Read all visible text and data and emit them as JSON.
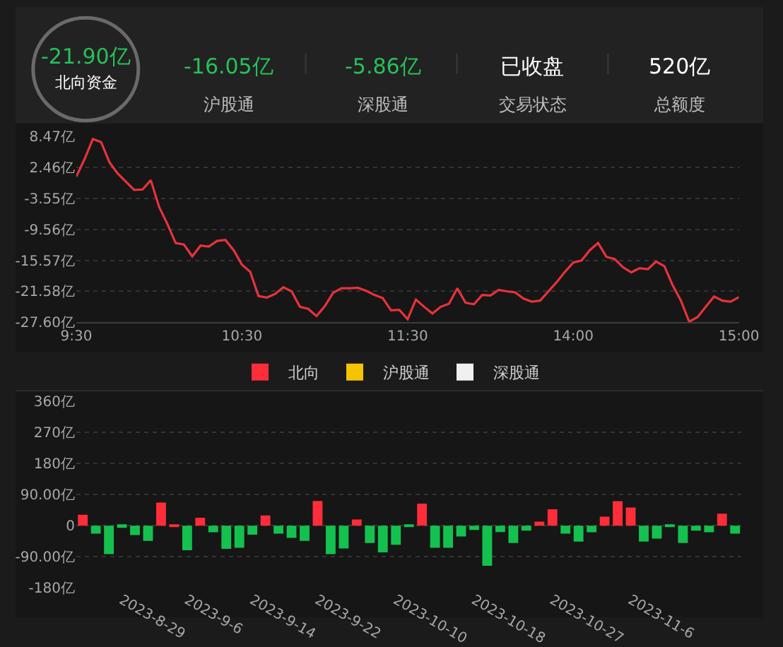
{
  "chart_data": [
    {
      "type": "other",
      "annotations": [
        "-21.90亿",
        "北向资金",
        "-16.05亿",
        "沪股通",
        "-5.86亿",
        "深股通",
        "已收盘",
        "交易状态",
        "520亿",
        "总额度"
      ]
    },
    {
      "type": "line",
      "categories": [
        "9:30",
        null,
        null,
        null,
        null,
        null,
        null,
        null,
        null,
        null,
        null,
        null,
        null,
        null,
        null,
        null,
        null,
        null,
        null,
        null,
        "10:30",
        null,
        null,
        null,
        null,
        null,
        null,
        null,
        null,
        null,
        null,
        null,
        null,
        null,
        null,
        null,
        null,
        null,
        null,
        null,
        "11:30",
        null,
        null,
        null,
        null,
        null,
        null,
        null,
        null,
        null,
        null,
        null,
        null,
        null,
        null,
        null,
        null,
        null,
        null,
        null,
        "14:00",
        null,
        null,
        null,
        null,
        null,
        null,
        null,
        null,
        null,
        null,
        null,
        null,
        null,
        null,
        null,
        null,
        null,
        null,
        null,
        "15:00"
      ],
      "ylim": [
        -27.6,
        8.47
      ],
      "yticks": [
        {
          "value": 8.47,
          "label": "8.47亿"
        },
        {
          "value": 2.46,
          "label": "2.46亿"
        },
        {
          "value": -3.55,
          "label": "-3.55亿"
        },
        {
          "value": -9.56,
          "label": "-9.56亿"
        },
        {
          "value": -15.57,
          "label": "-15.57亿"
        },
        {
          "value": -21.58,
          "label": "-21.58亿"
        },
        {
          "value": -27.6,
          "label": "-27.60亿"
        }
      ],
      "grid": "y",
      "series": [
        {
          "color": "#e8323c",
          "values": [
            0.7,
            4.1,
            8.0,
            7.4,
            3.5,
            1.3,
            -0.3,
            -1.9,
            -1.8,
            0.0,
            -5.2,
            -8.5,
            -12.2,
            -12.5,
            -14.8,
            -12.7,
            -12.9,
            -11.8,
            -11.6,
            -13.6,
            -16.4,
            -17.8,
            -22.5,
            -22.8,
            -22.1,
            -20.8,
            -21.6,
            -24.6,
            -25.0,
            -26.4,
            -24.5,
            -21.9,
            -21.0,
            -21.0,
            -20.9,
            -21.5,
            -22.3,
            -22.9,
            -25.3,
            -25.2,
            -27.0,
            -23.2,
            -24.6,
            -25.9,
            -24.6,
            -24.0,
            -21.0,
            -23.8,
            -24.1,
            -22.3,
            -22.4,
            -21.3,
            -21.6,
            -21.8,
            -23.0,
            -23.6,
            -23.4,
            -21.6,
            -19.8,
            -17.8,
            -16.0,
            -15.6,
            -13.6,
            -12.2,
            -14.9,
            -15.3,
            -16.9,
            -17.9,
            -17.1,
            -17.3,
            -15.8,
            -16.7,
            -20.4,
            -23.4,
            -27.5,
            -26.6,
            -24.6,
            -22.6,
            -23.4,
            -23.6,
            -22.7
          ]
        }
      ]
    },
    {
      "type": "bar",
      "legend": "top",
      "grid": "y",
      "ylim": [
        -180,
        360
      ],
      "yticks": [
        {
          "value": 360,
          "label": "360亿"
        },
        {
          "value": 270,
          "label": "270亿"
        },
        {
          "value": 180,
          "label": "180亿"
        },
        {
          "value": 90,
          "label": "90.00亿"
        },
        0,
        {
          "value": -90,
          "label": "-90.00亿"
        },
        {
          "value": -180,
          "label": "-180亿"
        }
      ],
      "categories": [
        null,
        null,
        null,
        "2023-8-29",
        null,
        null,
        null,
        null,
        "2023-9-6",
        null,
        null,
        null,
        null,
        "2023-9-14",
        null,
        null,
        null,
        null,
        "2023-9-22",
        null,
        null,
        null,
        null,
        null,
        "2023-10-10",
        null,
        null,
        null,
        null,
        null,
        "2023-10-18",
        null,
        null,
        null,
        null,
        null,
        "2023-10-27",
        null,
        null,
        null,
        null,
        null,
        "2023-11-6",
        null,
        null,
        null,
        null,
        null,
        null,
        null,
        null
      ],
      "series": [
        {
          "name": "北向",
          "color": "#ff2d3a",
          "values": [
            32,
            -23,
            -82,
            -6,
            -27,
            -44,
            67,
            -4,
            -71,
            23,
            -19,
            -67,
            -64,
            -26,
            30,
            -23,
            -35,
            -44,
            72,
            -82,
            -66,
            18,
            -50,
            -77,
            -55,
            -2,
            64,
            -64,
            -64,
            -31,
            -12,
            -116,
            -18,
            -50,
            -14,
            12,
            48,
            -23,
            -46,
            -19,
            26,
            71,
            53,
            -46,
            -37,
            -4,
            -50,
            -14,
            -19,
            35,
            -23
          ],
          "colors": [
            "#ff2d3a",
            "#14c14e",
            "#14c14e",
            "#14c14e",
            "#14c14e",
            "#14c14e",
            "#ff2d3a",
            "#ff2d3a",
            "#14c14e",
            "#ff2d3a",
            "#14c14e",
            "#14c14e",
            "#14c14e",
            "#14c14e",
            "#ff2d3a",
            "#14c14e",
            "#14c14e",
            "#14c14e",
            "#ff2d3a",
            "#14c14e",
            "#14c14e",
            "#ff2d3a",
            "#14c14e",
            "#14c14e",
            "#14c14e",
            "#14c14e",
            "#ff2d3a",
            "#14c14e",
            "#14c14e",
            "#14c14e",
            "#14c14e",
            "#14c14e",
            "#14c14e",
            "#14c14e",
            "#14c14e",
            "#ff2d3a",
            "#ff2d3a",
            "#14c14e",
            "#14c14e",
            "#14c14e",
            "#ff2d3a",
            "#ff2d3a",
            "#ff2d3a",
            "#14c14e",
            "#14c14e",
            "#14c14e",
            "#14c14e",
            "#14c14e",
            "#14c14e",
            "#ff2d3a",
            "#14c14e"
          ]
        },
        {
          "name": "沪股通",
          "color": "#f5c400",
          "values": [
            null,
            null,
            null,
            null,
            null,
            null,
            null,
            null,
            null,
            null,
            null,
            null,
            null,
            null,
            null,
            null,
            null,
            null,
            null,
            null,
            null,
            null,
            null,
            null,
            null,
            null,
            null,
            null,
            null,
            null,
            null,
            null,
            null,
            null,
            null,
            null,
            null,
            null,
            null,
            null,
            null,
            null,
            null,
            null,
            null,
            null,
            null,
            null,
            null,
            null,
            null
          ]
        },
        {
          "name": "深股通",
          "color": "#f0f0f0",
          "values": [
            null,
            null,
            null,
            null,
            null,
            null,
            null,
            null,
            null,
            null,
            null,
            null,
            null,
            null,
            null,
            null,
            null,
            null,
            null,
            null,
            null,
            null,
            null,
            null,
            null,
            null,
            null,
            null,
            null,
            null,
            null,
            null,
            null,
            null,
            null,
            null,
            null,
            null,
            null,
            null,
            null,
            null,
            null,
            null,
            null,
            null,
            null,
            null,
            null,
            null,
            null
          ]
        }
      ]
    }
  ]
}
